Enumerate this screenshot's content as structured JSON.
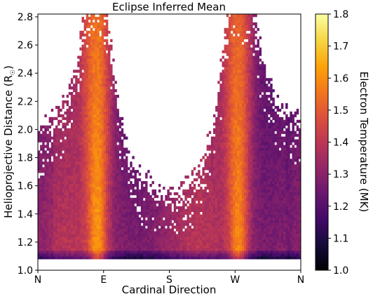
{
  "chart_data": {
    "type": "heatmap",
    "title": "Eclipse Inferred Mean",
    "xlabel": "Cardinal Direction",
    "ylabel": "Helioprojective Distance (R",
    "ylabel_symbol": "☉",
    "ylabel_close": ")",
    "x_ticks": [
      "N",
      "E",
      "S",
      "W",
      "N"
    ],
    "x_range_deg": [
      0,
      360
    ],
    "ylim": [
      1.0,
      2.82
    ],
    "y_ticks": [
      "1.0",
      "1.2",
      "1.4",
      "1.6",
      "1.8",
      "2.0",
      "2.2",
      "2.4",
      "2.6",
      "2.8"
    ],
    "colorbar": {
      "label": "Electron Temperature (MK)",
      "range": [
        1.0,
        1.8
      ],
      "ticks": [
        "1.0",
        "1.1",
        "1.2",
        "1.3",
        "1.4",
        "1.5",
        "1.6",
        "1.7",
        "1.8"
      ],
      "colormap": "inferno"
    },
    "data_min_height": 1.07,
    "streamers": [
      {
        "label": "E",
        "center_deg": 82,
        "width_deg": 14,
        "peak_mk": 1.6
      },
      {
        "label": "W",
        "center_deg": 275,
        "width_deg": 14,
        "peak_mk": 1.6
      }
    ]
  }
}
